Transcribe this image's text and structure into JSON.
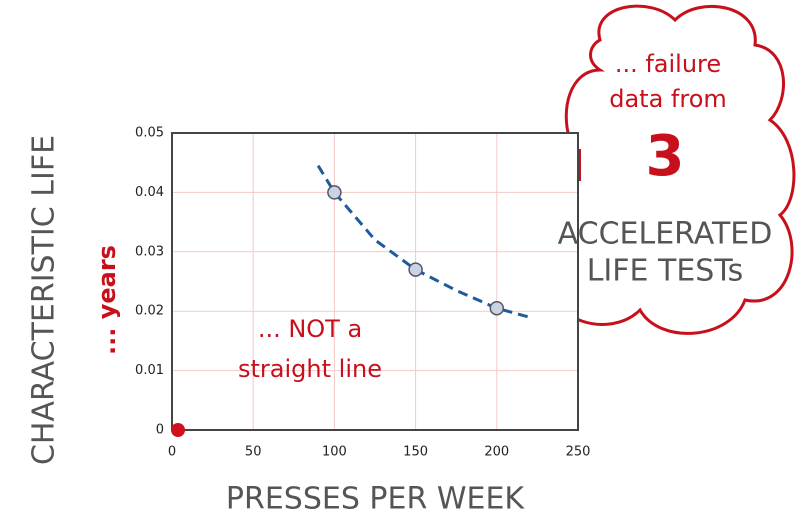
{
  "chart_data": {
    "type": "scatter",
    "x_label": "PRESSES PER WEEK",
    "y_label": "CHARACTERISTIC LIFE",
    "y_unit": "... years",
    "x": [
      100,
      150,
      200
    ],
    "values": [
      0.04,
      0.027,
      0.0205
    ],
    "color": "#c8d4e6",
    "curve": {
      "x": [
        90,
        100,
        125,
        150,
        175,
        200,
        220
      ],
      "values": [
        0.0445,
        0.04,
        0.032,
        0.027,
        0.0235,
        0.0205,
        0.019
      ],
      "color": "#1f5a9c"
    },
    "origin_point": {
      "x": 0,
      "value": 0,
      "color": "#d0101a"
    },
    "xlim": [
      0,
      250
    ],
    "xticks": [
      0,
      50,
      100,
      150,
      200,
      250
    ],
    "ylim": [
      0,
      0.05
    ],
    "yticks": [
      0,
      0.01,
      0.02,
      0.03,
      0.04,
      0.05
    ],
    "grid": true,
    "annotations": {
      "failure": [
        "... failure",
        "data from"
      ],
      "count": "3",
      "tests": [
        "ACCELERATED",
        "LIFE TESTs"
      ],
      "not_straight": [
        "... NOT a",
        "straight line"
      ]
    }
  }
}
